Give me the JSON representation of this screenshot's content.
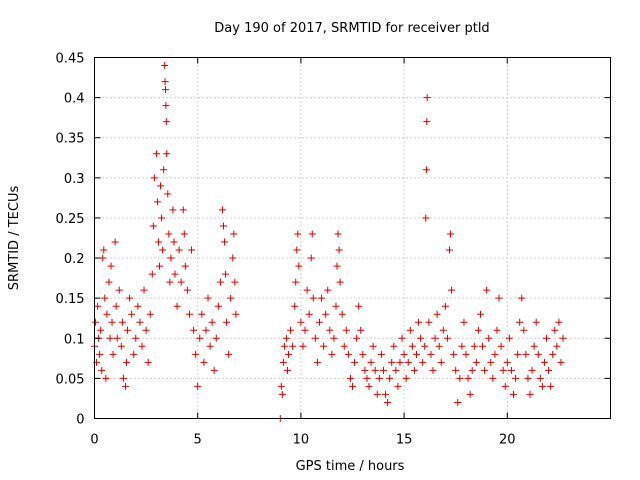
{
  "chart_data": {
    "type": "scatter",
    "title": "Day 190 of 2017, SRMTID for receiver ptld",
    "xlabel": "GPS time / hours",
    "ylabel": "SRMTID / TECUs",
    "xlim": [
      0,
      25
    ],
    "ylim": [
      0,
      0.45
    ],
    "xticks": [
      0,
      5,
      10,
      15,
      20
    ],
    "xtick_labels": [
      "0",
      "5",
      "10",
      "15",
      "20"
    ],
    "yticks": [
      0,
      0.05,
      0.1,
      0.15,
      0.2,
      0.25,
      0.3,
      0.35,
      0.4,
      0.45
    ],
    "ytick_labels": [
      "0",
      "0.05",
      "0.1",
      "0.15",
      "0.2",
      "0.25",
      "0.3",
      "0.35",
      "0.4",
      "0.45"
    ],
    "grid": true,
    "legend": "none",
    "marker": "+",
    "color": "#e00000",
    "series": [
      {
        "name": "SRMTID",
        "points": [
          [
            0.0,
            0.09
          ],
          [
            0.05,
            0.12
          ],
          [
            0.1,
            0.07
          ],
          [
            0.15,
            0.14
          ],
          [
            0.2,
            0.1
          ],
          [
            0.25,
            0.08
          ],
          [
            0.3,
            0.11
          ],
          [
            0.35,
            0.06
          ],
          [
            0.4,
            0.2
          ],
          [
            0.45,
            0.21
          ],
          [
            0.5,
            0.15
          ],
          [
            0.55,
            0.05
          ],
          [
            0.6,
            0.13
          ],
          [
            0.7,
            0.17
          ],
          [
            0.75,
            0.1
          ],
          [
            0.8,
            0.19
          ],
          [
            0.85,
            0.12
          ],
          [
            0.9,
            0.08
          ],
          [
            1.0,
            0.22
          ],
          [
            1.05,
            0.14
          ],
          [
            1.1,
            0.1
          ],
          [
            1.2,
            0.16
          ],
          [
            1.3,
            0.09
          ],
          [
            1.35,
            0.12
          ],
          [
            1.4,
            0.05
          ],
          [
            1.5,
            0.04
          ],
          [
            1.55,
            0.07
          ],
          [
            1.6,
            0.11
          ],
          [
            1.7,
            0.15
          ],
          [
            1.8,
            0.13
          ],
          [
            1.9,
            0.08
          ],
          [
            2.0,
            0.1
          ],
          [
            2.1,
            0.14
          ],
          [
            2.2,
            0.12
          ],
          [
            2.3,
            0.09
          ],
          [
            2.4,
            0.16
          ],
          [
            2.5,
            0.11
          ],
          [
            2.6,
            0.07
          ],
          [
            2.7,
            0.13
          ],
          [
            2.8,
            0.18
          ],
          [
            2.85,
            0.24
          ],
          [
            2.9,
            0.3
          ],
          [
            3.0,
            0.33
          ],
          [
            3.05,
            0.27
          ],
          [
            3.1,
            0.22
          ],
          [
            3.15,
            0.19
          ],
          [
            3.2,
            0.29
          ],
          [
            3.25,
            0.25
          ],
          [
            3.3,
            0.21
          ],
          [
            3.35,
            0.31
          ],
          [
            3.4,
            0.44
          ],
          [
            3.42,
            0.42
          ],
          [
            3.44,
            0.41
          ],
          [
            3.46,
            0.39
          ],
          [
            3.48,
            0.37
          ],
          [
            3.5,
            0.33
          ],
          [
            3.55,
            0.28
          ],
          [
            3.6,
            0.23
          ],
          [
            3.65,
            0.17
          ],
          [
            3.7,
            0.2
          ],
          [
            3.8,
            0.26
          ],
          [
            3.85,
            0.22
          ],
          [
            3.9,
            0.18
          ],
          [
            4.0,
            0.14
          ],
          [
            4.1,
            0.21
          ],
          [
            4.2,
            0.17
          ],
          [
            4.3,
            0.26
          ],
          [
            4.35,
            0.23
          ],
          [
            4.4,
            0.19
          ],
          [
            4.5,
            0.16
          ],
          [
            4.6,
            0.13
          ],
          [
            4.7,
            0.21
          ],
          [
            4.8,
            0.11
          ],
          [
            4.9,
            0.08
          ],
          [
            5.0,
            0.04
          ],
          [
            5.1,
            0.1
          ],
          [
            5.2,
            0.13
          ],
          [
            5.3,
            0.07
          ],
          [
            5.4,
            0.11
          ],
          [
            5.5,
            0.15
          ],
          [
            5.6,
            0.09
          ],
          [
            5.7,
            0.12
          ],
          [
            5.8,
            0.06
          ],
          [
            5.9,
            0.1
          ],
          [
            6.0,
            0.14
          ],
          [
            6.1,
            0.17
          ],
          [
            6.2,
            0.26
          ],
          [
            6.25,
            0.24
          ],
          [
            6.3,
            0.22
          ],
          [
            6.35,
            0.18
          ],
          [
            6.4,
            0.12
          ],
          [
            6.5,
            0.08
          ],
          [
            6.6,
            0.15
          ],
          [
            6.7,
            0.2
          ],
          [
            6.75,
            0.23
          ],
          [
            6.8,
            0.17
          ],
          [
            6.85,
            0.13
          ],
          [
            9.0,
            0.0
          ],
          [
            9.05,
            0.04
          ],
          [
            9.1,
            0.03
          ],
          [
            9.15,
            0.07
          ],
          [
            9.2,
            0.09
          ],
          [
            9.3,
            0.1
          ],
          [
            9.35,
            0.06
          ],
          [
            9.4,
            0.08
          ],
          [
            9.5,
            0.11
          ],
          [
            9.6,
            0.09
          ],
          [
            9.7,
            0.14
          ],
          [
            9.75,
            0.17
          ],
          [
            9.8,
            0.21
          ],
          [
            9.85,
            0.23
          ],
          [
            9.9,
            0.19
          ],
          [
            10.0,
            0.12
          ],
          [
            10.1,
            0.09
          ],
          [
            10.2,
            0.11
          ],
          [
            10.3,
            0.16
          ],
          [
            10.4,
            0.13
          ],
          [
            10.5,
            0.2
          ],
          [
            10.55,
            0.23
          ],
          [
            10.6,
            0.15
          ],
          [
            10.7,
            0.1
          ],
          [
            10.8,
            0.07
          ],
          [
            10.9,
            0.12
          ],
          [
            11.0,
            0.15
          ],
          [
            11.1,
            0.09
          ],
          [
            11.2,
            0.13
          ],
          [
            11.3,
            0.16
          ],
          [
            11.4,
            0.11
          ],
          [
            11.5,
            0.08
          ],
          [
            11.6,
            0.1
          ],
          [
            11.7,
            0.14
          ],
          [
            11.75,
            0.19
          ],
          [
            11.8,
            0.23
          ],
          [
            11.85,
            0.21
          ],
          [
            11.9,
            0.17
          ],
          [
            12.0,
            0.13
          ],
          [
            12.1,
            0.09
          ],
          [
            12.2,
            0.11
          ],
          [
            12.3,
            0.08
          ],
          [
            12.4,
            0.05
          ],
          [
            12.5,
            0.04
          ],
          [
            12.6,
            0.07
          ],
          [
            12.7,
            0.1
          ],
          [
            12.8,
            0.14
          ],
          [
            12.9,
            0.11
          ],
          [
            13.0,
            0.08
          ],
          [
            13.1,
            0.06
          ],
          [
            13.2,
            0.05
          ],
          [
            13.3,
            0.04
          ],
          [
            13.4,
            0.07
          ],
          [
            13.5,
            0.09
          ],
          [
            13.6,
            0.06
          ],
          [
            13.7,
            0.03
          ],
          [
            13.8,
            0.05
          ],
          [
            13.9,
            0.08
          ],
          [
            14.0,
            0.06
          ],
          [
            14.1,
            0.03
          ],
          [
            14.2,
            0.02
          ],
          [
            14.3,
            0.05
          ],
          [
            14.4,
            0.07
          ],
          [
            14.5,
            0.09
          ],
          [
            14.6,
            0.06
          ],
          [
            14.7,
            0.04
          ],
          [
            14.8,
            0.07
          ],
          [
            14.9,
            0.1
          ],
          [
            15.0,
            0.08
          ],
          [
            15.1,
            0.05
          ],
          [
            15.2,
            0.07
          ],
          [
            15.3,
            0.11
          ],
          [
            15.4,
            0.09
          ],
          [
            15.5,
            0.06
          ],
          [
            15.6,
            0.08
          ],
          [
            15.7,
            0.12
          ],
          [
            15.8,
            0.1
          ],
          [
            15.9,
            0.07
          ],
          [
            16.0,
            0.09
          ],
          [
            16.05,
            0.25
          ],
          [
            16.08,
            0.31
          ],
          [
            16.1,
            0.37
          ],
          [
            16.12,
            0.4
          ],
          [
            16.2,
            0.12
          ],
          [
            16.3,
            0.08
          ],
          [
            16.4,
            0.06
          ],
          [
            16.5,
            0.1
          ],
          [
            16.6,
            0.13
          ],
          [
            16.7,
            0.09
          ],
          [
            16.8,
            0.07
          ],
          [
            16.9,
            0.11
          ],
          [
            17.0,
            0.14
          ],
          [
            17.1,
            0.1
          ],
          [
            17.2,
            0.21
          ],
          [
            17.25,
            0.23
          ],
          [
            17.3,
            0.16
          ],
          [
            17.4,
            0.08
          ],
          [
            17.5,
            0.06
          ],
          [
            17.6,
            0.02
          ],
          [
            17.7,
            0.05
          ],
          [
            17.8,
            0.09
          ],
          [
            17.9,
            0.12
          ],
          [
            18.0,
            0.08
          ],
          [
            18.1,
            0.05
          ],
          [
            18.2,
            0.03
          ],
          [
            18.3,
            0.06
          ],
          [
            18.4,
            0.09
          ],
          [
            18.5,
            0.07
          ],
          [
            18.6,
            0.11
          ],
          [
            18.7,
            0.13
          ],
          [
            18.8,
            0.09
          ],
          [
            18.9,
            0.06
          ],
          [
            19.0,
            0.16
          ],
          [
            19.1,
            0.1
          ],
          [
            19.2,
            0.07
          ],
          [
            19.3,
            0.05
          ],
          [
            19.4,
            0.08
          ],
          [
            19.5,
            0.11
          ],
          [
            19.6,
            0.15
          ],
          [
            19.7,
            0.09
          ],
          [
            19.8,
            0.06
          ],
          [
            19.9,
            0.04
          ],
          [
            20.0,
            0.07
          ],
          [
            20.1,
            0.1
          ],
          [
            20.2,
            0.06
          ],
          [
            20.3,
            0.03
          ],
          [
            20.4,
            0.05
          ],
          [
            20.5,
            0.08
          ],
          [
            20.6,
            0.12
          ],
          [
            20.7,
            0.15
          ],
          [
            20.8,
            0.11
          ],
          [
            20.9,
            0.08
          ],
          [
            21.0,
            0.05
          ],
          [
            21.1,
            0.03
          ],
          [
            21.2,
            0.06
          ],
          [
            21.3,
            0.09
          ],
          [
            21.4,
            0.12
          ],
          [
            21.5,
            0.08
          ],
          [
            21.6,
            0.05
          ],
          [
            21.7,
            0.04
          ],
          [
            21.8,
            0.07
          ],
          [
            21.9,
            0.1
          ],
          [
            22.0,
            0.06
          ],
          [
            22.1,
            0.04
          ],
          [
            22.2,
            0.08
          ],
          [
            22.3,
            0.11
          ],
          [
            22.4,
            0.09
          ],
          [
            22.5,
            0.12
          ],
          [
            22.6,
            0.07
          ],
          [
            22.7,
            0.1
          ]
        ]
      }
    ]
  }
}
